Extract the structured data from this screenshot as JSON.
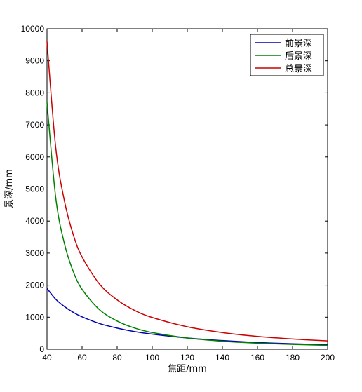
{
  "chart_data": {
    "type": "line",
    "title": "",
    "xlabel": "焦距/mm",
    "ylabel": "景深/mm",
    "xlim": [
      40,
      200
    ],
    "ylim": [
      0,
      10000
    ],
    "xticks": [
      40,
      60,
      80,
      100,
      120,
      140,
      160,
      180,
      200
    ],
    "yticks": [
      0,
      1000,
      2000,
      3000,
      4000,
      5000,
      6000,
      7000,
      8000,
      9000,
      10000
    ],
    "grid": false,
    "legend_position": "top-right",
    "x": [
      40,
      45,
      50,
      55,
      60,
      70,
      80,
      90,
      100,
      120,
      140,
      160,
      180,
      200
    ],
    "series": [
      {
        "name": "前景深",
        "color": "#0000b4",
        "values": [
          1900,
          1560,
          1330,
          1150,
          1010,
          800,
          660,
          550,
          470,
          350,
          270,
          210,
          170,
          140
        ]
      },
      {
        "name": "后景深",
        "color": "#008000",
        "values": [
          7700,
          4720,
          3280,
          2420,
          1870,
          1230,
          880,
          660,
          520,
          350,
          250,
          190,
          150,
          120
        ]
      },
      {
        "name": "总景深",
        "color": "#cc0000",
        "values": [
          9600,
          6280,
          4610,
          3570,
          2880,
          2030,
          1540,
          1210,
          990,
          700,
          520,
          400,
          320,
          260
        ]
      }
    ]
  }
}
